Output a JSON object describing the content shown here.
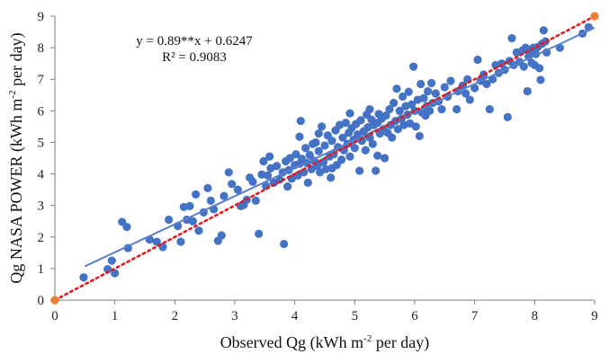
{
  "chart_data": {
    "type": "scatter",
    "xlabel": {
      "main": "Observed Qg (kWh m",
      "sup": "-2",
      "rest": " per day)"
    },
    "ylabel": {
      "main": "Qg NASA POWER (kWh m",
      "sup": "-2",
      "rest": " per day)"
    },
    "xlim": [
      0,
      9
    ],
    "ylim": [
      0,
      9
    ],
    "xticks": [
      "0",
      "1",
      "2",
      "3",
      "4",
      "5",
      "6",
      "7",
      "8",
      "9"
    ],
    "yticks": [
      "0",
      "1",
      "2",
      "3",
      "4",
      "5",
      "6",
      "7",
      "8",
      "9"
    ],
    "grid": false,
    "annotation": {
      "equation": "y = 0.89**x + 0.6247",
      "r2": "R² = 0.9083"
    },
    "colors": {
      "points": "#4472C4",
      "trend": "#5B7FC9",
      "one_to_one": "#E31A1C",
      "endpoints": "#ED7D31",
      "axis": "#7F7F7F"
    },
    "trendline": {
      "slope": 0.89,
      "intercept": 0.6247,
      "x_range": [
        0.5,
        9.0
      ]
    },
    "one_to_one": {
      "x_range": [
        0,
        9
      ]
    },
    "endpoints": [
      [
        0,
        0
      ],
      [
        9,
        9
      ]
    ],
    "series": [
      {
        "points": [
          [
            0.48,
            0.72
          ],
          [
            0.88,
            0.98
          ],
          [
            0.95,
            1.25
          ],
          [
            1.0,
            0.85
          ],
          [
            1.12,
            2.48
          ],
          [
            1.2,
            2.32
          ],
          [
            1.22,
            1.65
          ],
          [
            1.58,
            1.92
          ],
          [
            1.7,
            1.85
          ],
          [
            1.8,
            1.68
          ],
          [
            1.9,
            2.55
          ],
          [
            2.05,
            2.35
          ],
          [
            2.1,
            1.85
          ],
          [
            2.15,
            2.95
          ],
          [
            2.2,
            2.55
          ],
          [
            2.25,
            2.98
          ],
          [
            2.3,
            2.5
          ],
          [
            2.35,
            3.35
          ],
          [
            2.4,
            2.2
          ],
          [
            2.48,
            2.78
          ],
          [
            2.55,
            3.55
          ],
          [
            2.6,
            3.15
          ],
          [
            2.65,
            2.88
          ],
          [
            2.72,
            1.88
          ],
          [
            2.78,
            2.05
          ],
          [
            2.82,
            3.3
          ],
          [
            2.9,
            4.05
          ],
          [
            2.95,
            3.68
          ],
          [
            3.05,
            3.5
          ],
          [
            3.1,
            2.98
          ],
          [
            3.15,
            3.02
          ],
          [
            3.2,
            3.18
          ],
          [
            3.25,
            3.88
          ],
          [
            3.3,
            3.75
          ],
          [
            3.35,
            3.15
          ],
          [
            3.4,
            2.1
          ],
          [
            3.45,
            3.98
          ],
          [
            3.48,
            4.4
          ],
          [
            3.52,
            3.62
          ],
          [
            3.55,
            3.95
          ],
          [
            3.6,
            4.18
          ],
          [
            3.65,
            3.72
          ],
          [
            3.7,
            4.25
          ],
          [
            3.75,
            3.82
          ],
          [
            3.8,
            4.05
          ],
          [
            3.82,
            1.78
          ],
          [
            3.85,
            4.4
          ],
          [
            3.88,
            3.6
          ],
          [
            3.9,
            4.12
          ],
          [
            3.92,
            4.5
          ],
          [
            3.95,
            3.85
          ],
          [
            4.0,
            4.28
          ],
          [
            4.02,
            4.62
          ],
          [
            4.05,
            3.95
          ],
          [
            4.08,
            5.18
          ],
          [
            4.1,
            5.68
          ],
          [
            4.12,
            4.48
          ],
          [
            4.15,
            4.05
          ],
          [
            4.18,
            4.82
          ],
          [
            4.2,
            4.35
          ],
          [
            4.22,
            3.72
          ],
          [
            4.25,
            4.6
          ],
          [
            4.28,
            4.15
          ],
          [
            4.3,
            4.95
          ],
          [
            4.32,
            4.42
          ],
          [
            4.35,
            5.0
          ],
          [
            4.38,
            4.25
          ],
          [
            4.4,
            4.72
          ],
          [
            4.42,
            4.05
          ],
          [
            4.45,
            5.5
          ],
          [
            4.48,
            4.38
          ],
          [
            4.5,
            4.9
          ],
          [
            4.52,
            4.15
          ],
          [
            4.55,
            5.22
          ],
          [
            4.58,
            4.55
          ],
          [
            4.6,
            3.88
          ],
          [
            4.62,
            5.05
          ],
          [
            4.65,
            4.62
          ],
          [
            4.68,
            5.38
          ],
          [
            4.7,
            4.28
          ],
          [
            4.72,
            4.85
          ],
          [
            4.75,
            5.55
          ],
          [
            4.78,
            4.45
          ],
          [
            4.8,
            5.15
          ],
          [
            4.82,
            4.75
          ],
          [
            4.85,
            5.62
          ],
          [
            4.88,
            4.95
          ],
          [
            4.9,
            5.3
          ],
          [
            4.92,
            4.55
          ],
          [
            4.95,
            5.45
          ],
          [
            4.98,
            5.08
          ],
          [
            5.0,
            4.82
          ],
          [
            5.02,
            5.58
          ],
          [
            5.05,
            5.25
          ],
          [
            5.08,
            4.1
          ],
          [
            5.1,
            5.7
          ],
          [
            5.12,
            5.05
          ],
          [
            5.15,
            5.35
          ],
          [
            5.18,
            4.75
          ],
          [
            5.2,
            5.88
          ],
          [
            5.22,
            5.48
          ],
          [
            5.25,
            5.15
          ],
          [
            5.28,
            5.72
          ],
          [
            5.3,
            4.95
          ],
          [
            5.32,
            5.55
          ],
          [
            5.35,
            4.1
          ],
          [
            5.38,
            5.62
          ],
          [
            5.4,
            5.9
          ],
          [
            5.42,
            5.28
          ],
          [
            5.45,
            5.75
          ],
          [
            5.48,
            5.42
          ],
          [
            5.5,
            4.5
          ],
          [
            5.52,
            5.85
          ],
          [
            5.55,
            5.3
          ],
          [
            5.58,
            6.05
          ],
          [
            5.6,
            5.55
          ],
          [
            5.62,
            5.15
          ],
          [
            5.65,
            6.25
          ],
          [
            5.68,
            5.68
          ],
          [
            5.7,
            6.7
          ],
          [
            5.72,
            5.42
          ],
          [
            5.75,
            6.0
          ],
          [
            5.78,
            5.75
          ],
          [
            5.8,
            6.45
          ],
          [
            5.82,
            5.55
          ],
          [
            5.85,
            6.15
          ],
          [
            5.88,
            5.88
          ],
          [
            5.9,
            6.6
          ],
          [
            5.92,
            5.6
          ],
          [
            5.95,
            6.2
          ],
          [
            5.98,
            7.4
          ],
          [
            6.0,
            6.0
          ],
          [
            6.02,
            5.5
          ],
          [
            6.05,
            6.35
          ],
          [
            6.08,
            5.2
          ],
          [
            6.1,
            6.85
          ],
          [
            6.12,
            5.95
          ],
          [
            6.15,
            6.4
          ],
          [
            6.18,
            5.85
          ],
          [
            6.2,
            6.15
          ],
          [
            6.22,
            6.62
          ],
          [
            6.25,
            6.0
          ],
          [
            6.28,
            6.88
          ],
          [
            6.3,
            6.25
          ],
          [
            6.35,
            6.55
          ],
          [
            6.4,
            6.3
          ],
          [
            6.45,
            6.05
          ],
          [
            6.5,
            6.75
          ],
          [
            6.55,
            6.45
          ],
          [
            6.6,
            6.95
          ],
          [
            6.7,
            6.05
          ],
          [
            6.72,
            6.62
          ],
          [
            6.8,
            6.8
          ],
          [
            6.85,
            6.55
          ],
          [
            6.88,
            7.0
          ],
          [
            6.92,
            6.35
          ],
          [
            7.0,
            6.72
          ],
          [
            7.05,
            7.62
          ],
          [
            7.1,
            6.95
          ],
          [
            7.15,
            7.15
          ],
          [
            7.2,
            6.85
          ],
          [
            7.25,
            6.05
          ],
          [
            7.3,
            7.0
          ],
          [
            7.35,
            7.45
          ],
          [
            7.4,
            7.2
          ],
          [
            7.45,
            7.5
          ],
          [
            7.5,
            7.3
          ],
          [
            7.55,
            5.8
          ],
          [
            7.58,
            7.58
          ],
          [
            7.62,
            8.3
          ],
          [
            7.65,
            7.45
          ],
          [
            7.7,
            7.85
          ],
          [
            7.75,
            7.55
          ],
          [
            7.8,
            7.92
          ],
          [
            7.82,
            7.4
          ],
          [
            7.85,
            8.0
          ],
          [
            7.88,
            6.62
          ],
          [
            7.9,
            7.72
          ],
          [
            7.92,
            7.92
          ],
          [
            7.95,
            7.52
          ],
          [
            7.98,
            8.0
          ],
          [
            8.0,
            7.45
          ],
          [
            8.02,
            7.8
          ],
          [
            8.05,
            8.02
          ],
          [
            8.08,
            7.35
          ],
          [
            8.1,
            6.98
          ],
          [
            8.12,
            8.12
          ],
          [
            8.15,
            8.55
          ],
          [
            8.18,
            8.2
          ],
          [
            8.2,
            7.85
          ],
          [
            8.42,
            8.0
          ],
          [
            8.8,
            8.45
          ],
          [
            8.9,
            8.65
          ],
          [
            4.08,
            4.32
          ],
          [
            4.62,
            4.18
          ],
          [
            5.38,
            4.58
          ],
          [
            4.4,
            5.28
          ],
          [
            3.58,
            4.55
          ],
          [
            4.92,
            5.92
          ],
          [
            5.25,
            6.05
          ]
        ]
      }
    ]
  }
}
